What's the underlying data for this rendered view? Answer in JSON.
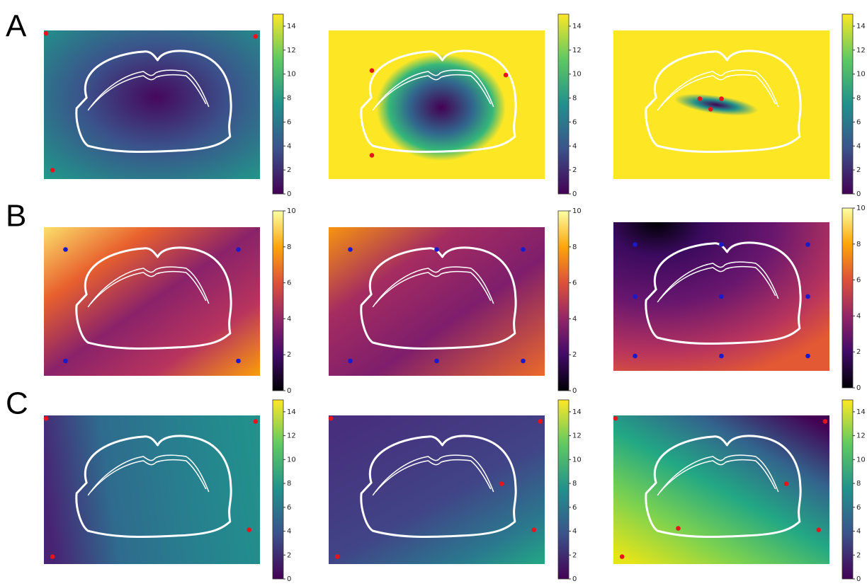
{
  "figure": {
    "panel_labels": [
      "A",
      "B",
      "C"
    ]
  },
  "chart_data": [
    {
      "type": "heatmap",
      "colormap": "viridis",
      "clim": [
        0,
        15
      ],
      "cticks": [
        0,
        2,
        4,
        6,
        8,
        10,
        12,
        14
      ]
    },
    {
      "type": "heatmap",
      "colormap": "viridis",
      "clim": [
        0,
        15
      ],
      "cticks": [
        0,
        2,
        4,
        6,
        8,
        10,
        12,
        14
      ]
    },
    {
      "type": "heatmap",
      "colormap": "viridis",
      "clim": [
        0,
        15
      ],
      "cticks": [
        0,
        2,
        4,
        6,
        8,
        10,
        12,
        14
      ]
    },
    {
      "type": "heatmap",
      "colormap": "inferno",
      "clim": [
        0,
        10
      ],
      "cticks": [
        0,
        2,
        4,
        6,
        8,
        10
      ]
    },
    {
      "type": "heatmap",
      "colormap": "inferno",
      "clim": [
        0,
        10
      ],
      "cticks": [
        0,
        2,
        4,
        6,
        8,
        10
      ]
    },
    {
      "type": "heatmap",
      "colormap": "inferno",
      "clim": [
        0,
        10
      ],
      "cticks": [
        0,
        2,
        4,
        6,
        8,
        10
      ]
    },
    {
      "type": "heatmap",
      "colormap": "viridis",
      "clim": [
        0,
        15
      ],
      "cticks": [
        0,
        2,
        4,
        6,
        8,
        10,
        12,
        14
      ]
    },
    {
      "type": "heatmap",
      "colormap": "viridis",
      "clim": [
        0,
        15
      ],
      "cticks": [
        0,
        2,
        4,
        6,
        8,
        10,
        12,
        14
      ]
    },
    {
      "type": "heatmap",
      "colormap": "viridis",
      "clim": [
        0,
        15
      ],
      "cticks": [
        0,
        2,
        4,
        6,
        8,
        10,
        12,
        14
      ]
    }
  ]
}
